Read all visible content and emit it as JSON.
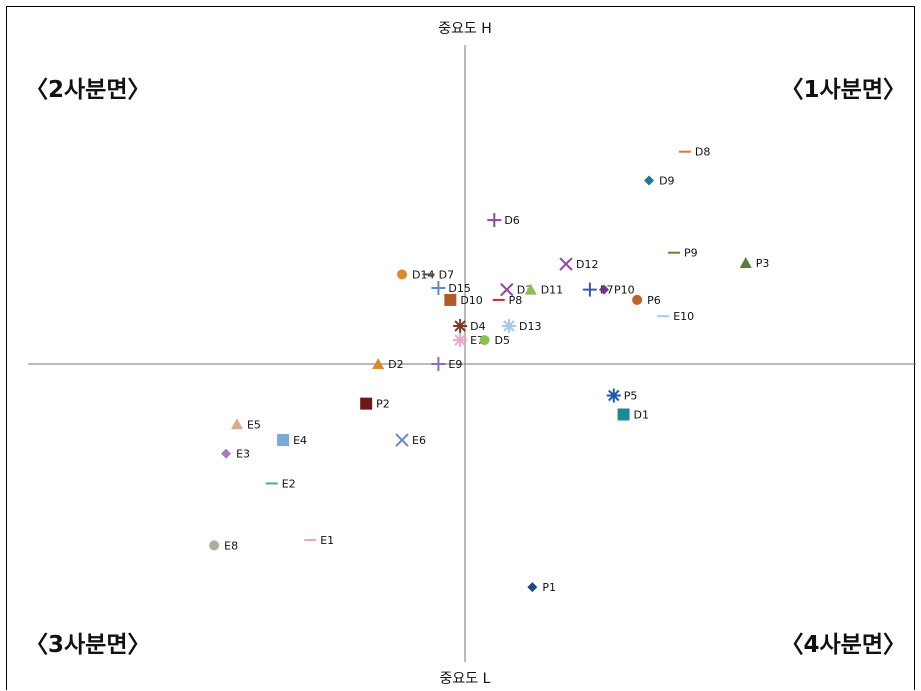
{
  "chart_data": {
    "type": "scatter",
    "axis_top_label": "중요도 H",
    "axis_bottom_label": "중요도 L",
    "quadrants": [
      "〈2사분면〉",
      "〈1사분면〉",
      "〈3사분면〉",
      "〈4사분면〉"
    ],
    "xlim": [
      -8,
      8
    ],
    "ylim": [
      -7,
      7
    ],
    "points": [
      {
        "name": "D8",
        "x": 4.05,
        "y": 3.91,
        "marker": "dash",
        "color": "#d9773a"
      },
      {
        "name": "D9",
        "x": 3.39,
        "y": 3.38,
        "marker": "diamond",
        "color": "#1f7896"
      },
      {
        "name": "D6",
        "x": 0.54,
        "y": 2.65,
        "marker": "plus",
        "color": "#8e4a9a"
      },
      {
        "name": "P9",
        "x": 3.85,
        "y": 2.05,
        "marker": "dash",
        "color": "#7a7a30"
      },
      {
        "name": "P3",
        "x": 5.17,
        "y": 1.86,
        "marker": "triangle",
        "color": "#5c7a3a"
      },
      {
        "name": "D12",
        "x": 1.86,
        "y": 1.84,
        "marker": "x",
        "color": "#8e4a9a"
      },
      {
        "name": "D14",
        "x": -1.16,
        "y": 1.65,
        "marker": "circle",
        "color": "#d98a2a"
      },
      {
        "name": "D7",
        "x": -0.67,
        "y": 1.65,
        "marker": "dash",
        "color": "#555555"
      },
      {
        "name": "D15",
        "x": -0.49,
        "y": 1.4,
        "marker": "plus",
        "color": "#6a86c8"
      },
      {
        "name": "D3",
        "x": 0.77,
        "y": 1.37,
        "marker": "x",
        "color": "#8e4a9a"
      },
      {
        "name": "D11",
        "x": 1.21,
        "y": 1.37,
        "marker": "triangle",
        "color": "#8ac050"
      },
      {
        "name": "P7",
        "x": 2.3,
        "y": 1.37,
        "marker": "plus",
        "color": "#3a5aa8"
      },
      {
        "name": "P10",
        "x": 2.56,
        "y": 1.37,
        "marker": "diamond",
        "color": "#6a3a8a"
      },
      {
        "name": "D10",
        "x": -0.27,
        "y": 1.18,
        "marker": "square",
        "color": "#b05a2a"
      },
      {
        "name": "P8",
        "x": 0.62,
        "y": 1.18,
        "marker": "dash",
        "color": "#c0303a"
      },
      {
        "name": "P6",
        "x": 3.17,
        "y": 1.18,
        "marker": "circle",
        "color": "#c0602a"
      },
      {
        "name": "E10",
        "x": 3.65,
        "y": 0.88,
        "marker": "dash",
        "color": "#a8c8e8"
      },
      {
        "name": "D4",
        "x": -0.09,
        "y": 0.7,
        "marker": "star",
        "color": "#7a3a2a"
      },
      {
        "name": "D13",
        "x": 0.81,
        "y": 0.7,
        "marker": "star",
        "color": "#a8c8e8"
      },
      {
        "name": "E7",
        "x": -0.09,
        "y": 0.44,
        "marker": "star",
        "color": "#e8a8c8"
      },
      {
        "name": "D5",
        "x": 0.36,
        "y": 0.44,
        "marker": "circle",
        "color": "#8ac050"
      },
      {
        "name": "D2",
        "x": -1.6,
        "y": 0.0,
        "marker": "triangle",
        "color": "#d98a2a"
      },
      {
        "name": "E9",
        "x": -0.49,
        "y": 0.0,
        "marker": "plus",
        "color": "#8a6ac8"
      },
      {
        "name": "P5",
        "x": 2.74,
        "y": -0.58,
        "marker": "star",
        "color": "#1f5aa8"
      },
      {
        "name": "P2",
        "x": -1.82,
        "y": -0.73,
        "marker": "square",
        "color": "#6a1a1a"
      },
      {
        "name": "D1",
        "x": 2.92,
        "y": -0.93,
        "marker": "square",
        "color": "#1a8a96"
      },
      {
        "name": "E5",
        "x": -4.2,
        "y": -1.11,
        "marker": "triangle",
        "color": "#d8a890"
      },
      {
        "name": "E4",
        "x": -3.35,
        "y": -1.4,
        "marker": "square",
        "color": "#7aaad8"
      },
      {
        "name": "E6",
        "x": -1.16,
        "y": -1.4,
        "marker": "x",
        "color": "#6a86c8"
      },
      {
        "name": "E3",
        "x": -4.4,
        "y": -1.65,
        "marker": "diamond",
        "color": "#a87ab8"
      },
      {
        "name": "E2",
        "x": -3.56,
        "y": -2.2,
        "marker": "dash",
        "color": "#5aa88a"
      },
      {
        "name": "E8",
        "x": -4.62,
        "y": -3.34,
        "marker": "circle",
        "color": "#a8b0a0"
      },
      {
        "name": "E1",
        "x": -2.85,
        "y": -3.24,
        "marker": "dash",
        "color": "#e8a8b8"
      },
      {
        "name": "P1",
        "x": 1.24,
        "y": -4.11,
        "marker": "diamond",
        "color": "#1f4a8a"
      }
    ]
  }
}
